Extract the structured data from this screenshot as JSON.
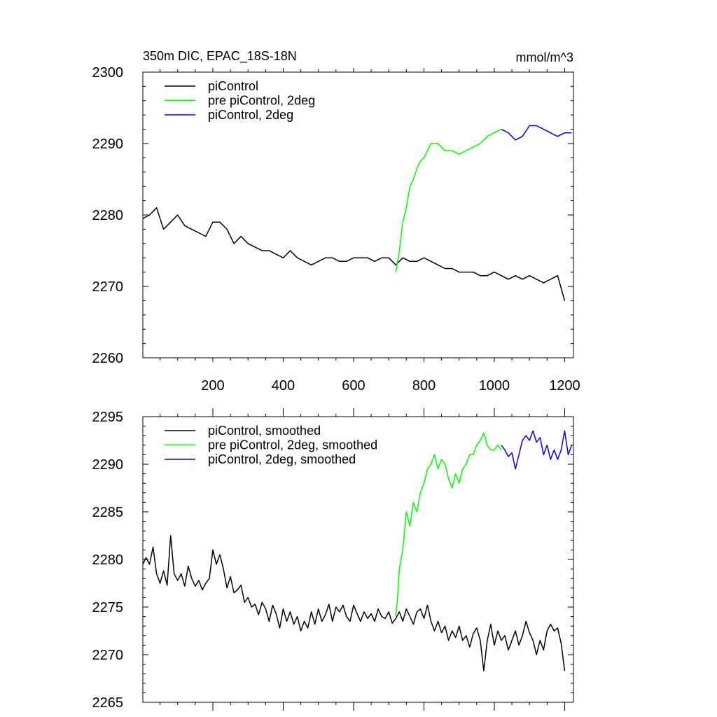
{
  "chart_data": [
    {
      "type": "line",
      "title": "350m DIC, EPAC_18S-18N",
      "units": "mmol/m^3",
      "xlim": [
        1,
        1225
      ],
      "ylim": [
        2260,
        2300
      ],
      "xticks": [
        200,
        400,
        600,
        800,
        1000,
        1200
      ],
      "yticks": [
        2260,
        2270,
        2280,
        2290,
        2300
      ],
      "legend_position": "top-left",
      "grid": false,
      "series": [
        {
          "name": "piControl",
          "color": "#000000",
          "x": [
            1,
            20,
            40,
            60,
            80,
            100,
            120,
            140,
            160,
            180,
            200,
            220,
            240,
            260,
            280,
            300,
            320,
            340,
            360,
            380,
            400,
            420,
            440,
            460,
            480,
            500,
            520,
            540,
            560,
            580,
            600,
            620,
            640,
            660,
            680,
            700,
            720,
            740,
            760,
            780,
            800,
            820,
            840,
            860,
            880,
            900,
            920,
            940,
            960,
            980,
            1000,
            1020,
            1040,
            1060,
            1080,
            1100,
            1120,
            1140,
            1160,
            1180,
            1200
          ],
          "values": [
            2279.5,
            2280,
            2281,
            2278,
            2279,
            2280,
            2278.5,
            2278,
            2277.5,
            2277,
            2279,
            2279,
            2278,
            2276,
            2277,
            2276,
            2275.5,
            2275,
            2275,
            2274.5,
            2274,
            2275,
            2274,
            2273.5,
            2273,
            2273.5,
            2274,
            2274,
            2273.5,
            2273.5,
            2274,
            2274,
            2274,
            2273.5,
            2274,
            2274,
            2273,
            2274,
            2273.5,
            2273.5,
            2274,
            2273.5,
            2273,
            2272.5,
            2272.5,
            2272,
            2272,
            2272,
            2271.5,
            2271.5,
            2272,
            2271.5,
            2271,
            2271.5,
            2271,
            2271.5,
            2271,
            2270.5,
            2271,
            2271.5,
            2268
          ]
        },
        {
          "name": "pre piControl, 2deg",
          "color": "#00ff00",
          "x": [
            720,
            730,
            740,
            750,
            760,
            770,
            780,
            790,
            800,
            810,
            820,
            840,
            860,
            880,
            900,
            920,
            940,
            960,
            980,
            1000,
            1020
          ],
          "values": [
            2272,
            2275,
            2279,
            2281,
            2284,
            2285,
            2286.5,
            2287.5,
            2288,
            2289,
            2290,
            2290,
            2289,
            2289,
            2288.5,
            2289,
            2289.5,
            2290,
            2291,
            2291.5,
            2292
          ]
        },
        {
          "name": "piControl, 2deg",
          "color": "#0000ff",
          "x": [
            1020,
            1040,
            1060,
            1080,
            1100,
            1120,
            1140,
            1160,
            1180,
            1200,
            1220
          ],
          "values": [
            2292,
            2291.5,
            2290.5,
            2291,
            2292.5,
            2292.5,
            2292,
            2291.5,
            2291,
            2291.5,
            2291.5
          ]
        }
      ]
    },
    {
      "type": "line",
      "xlim": [
        1,
        1225
      ],
      "ylim": [
        2265,
        2295
      ],
      "yticks": [
        2265,
        2270,
        2275,
        2280,
        2285,
        2290,
        2295
      ],
      "legend_position": "top-left",
      "grid": false,
      "series": [
        {
          "name": "piControl, smoothed",
          "color": "#000000",
          "x": [
            1,
            10,
            20,
            30,
            40,
            50,
            60,
            70,
            80,
            90,
            100,
            110,
            120,
            130,
            140,
            150,
            160,
            170,
            180,
            190,
            200,
            210,
            220,
            230,
            240,
            250,
            260,
            270,
            280,
            290,
            300,
            310,
            320,
            330,
            340,
            350,
            360,
            370,
            380,
            390,
            400,
            410,
            420,
            430,
            440,
            450,
            460,
            470,
            480,
            490,
            500,
            510,
            520,
            530,
            540,
            550,
            560,
            570,
            580,
            590,
            600,
            610,
            620,
            630,
            640,
            650,
            660,
            670,
            680,
            690,
            700,
            710,
            720,
            730,
            740,
            750,
            760,
            770,
            780,
            790,
            800,
            810,
            820,
            830,
            840,
            850,
            860,
            870,
            880,
            890,
            900,
            910,
            920,
            930,
            940,
            950,
            960,
            970,
            980,
            990,
            1000,
            1010,
            1020,
            1030,
            1040,
            1050,
            1060,
            1070,
            1080,
            1090,
            1100,
            1110,
            1120,
            1130,
            1140,
            1150,
            1160,
            1170,
            1180,
            1190,
            1200
          ],
          "values": [
            2279.5,
            2280.2,
            2279.5,
            2281.3,
            2278.5,
            2277.5,
            2278.8,
            2277.3,
            2282.5,
            2278.5,
            2277.8,
            2278.5,
            2277.2,
            2279.3,
            2278,
            2277.2,
            2277.8,
            2276.8,
            2277.5,
            2278,
            2281,
            2279.5,
            2280.5,
            2279,
            2277,
            2278.2,
            2276.5,
            2276.8,
            2277.3,
            2275.5,
            2276,
            2275,
            2275.3,
            2274.2,
            2275.5,
            2274.8,
            2273.5,
            2275.2,
            2274.3,
            2272.8,
            2274.8,
            2273.5,
            2274.5,
            2273.2,
            2274,
            2272.5,
            2273.5,
            2272.8,
            2274.5,
            2273.2,
            2274.8,
            2273.5,
            2274.2,
            2275.3,
            2273.5,
            2275,
            2274.5,
            2275.2,
            2274,
            2273.5,
            2275.2,
            2274.3,
            2273.5,
            2274.5,
            2273.8,
            2274.3,
            2273.5,
            2274.8,
            2274,
            2273.8,
            2274.5,
            2273.3,
            2273.8,
            2274.5,
            2273.5,
            2274.8,
            2274,
            2273.2,
            2274.5,
            2274.8,
            2273.8,
            2275.2,
            2273.5,
            2272.5,
            2273.5,
            2272.3,
            2273,
            2271.5,
            2272.5,
            2271.8,
            2273,
            2271.5,
            2272,
            2270.8,
            2272.2,
            2272.8,
            2271.5,
            2268.3,
            2271.5,
            2273.2,
            2271,
            2272.5,
            2271.5,
            2272,
            2270.5,
            2271.5,
            2272.5,
            2271,
            2272,
            2273.5,
            2272.3,
            2271.5,
            2270,
            2271.5,
            2270.5,
            2272.5,
            2273.2,
            2272.5,
            2272.8,
            2271.2,
            2268.3
          ]
        },
        {
          "name": "pre piControl, 2deg, smoothed",
          "color": "#00ff00",
          "x": [
            720,
            725,
            730,
            735,
            740,
            745,
            750,
            760,
            770,
            780,
            790,
            800,
            810,
            820,
            830,
            840,
            850,
            860,
            870,
            880,
            890,
            900,
            910,
            920,
            930,
            940,
            950,
            960,
            970,
            980,
            990,
            1000,
            1010,
            1020
          ],
          "values": [
            2274,
            2276,
            2279,
            2280,
            2281,
            2283,
            2285,
            2283.5,
            2286,
            2285,
            2287,
            2288,
            2289.5,
            2290,
            2291,
            2289.5,
            2290.5,
            2290,
            2288.5,
            2287.5,
            2289,
            2288,
            2289.5,
            2290,
            2291,
            2291,
            2292,
            2292.5,
            2293.3,
            2292,
            2291.5,
            2291.5,
            2292,
            2291.5
          ]
        },
        {
          "name": "piControl, 2deg, smoothed",
          "color": "#0000ff",
          "x": [
            1020,
            1030,
            1040,
            1050,
            1060,
            1070,
            1080,
            1090,
            1100,
            1110,
            1120,
            1130,
            1140,
            1150,
            1160,
            1170,
            1180,
            1190,
            1200,
            1210,
            1220
          ],
          "values": [
            2292,
            2291.5,
            2290.8,
            2291.2,
            2289.5,
            2291,
            2292.5,
            2293,
            2292.5,
            2293.5,
            2292.3,
            2292.8,
            2291,
            2292,
            2290.5,
            2291.5,
            2290.5,
            2291.5,
            2293.5,
            2291,
            2292
          ]
        }
      ]
    }
  ]
}
